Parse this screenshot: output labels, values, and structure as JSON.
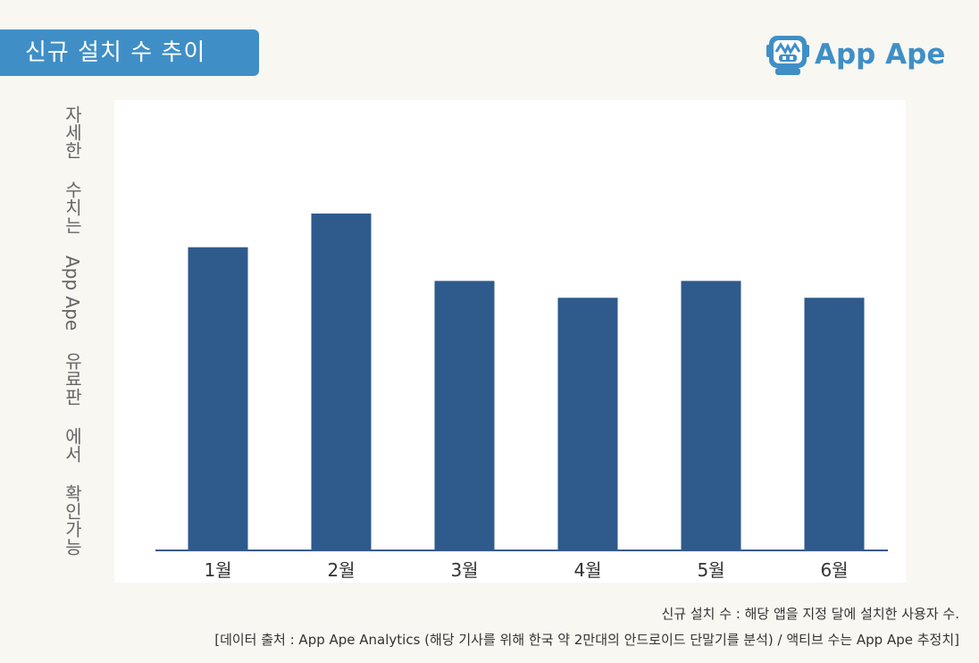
{
  "title": "신규 설치 수 추이",
  "brand": {
    "name": "App Ape",
    "logo_icon": "app-ape-robot-icon",
    "color": "#3f8fc6"
  },
  "y_label": {
    "text": "자세한 수치는 App Ape 유료판 에서 확인가능",
    "part1": "자세한 수치는 ",
    "part2": "App Ape",
    "part3": " 유료판 에서 확인가능"
  },
  "chart_data": {
    "type": "bar",
    "categories": [
      "1월",
      "2월",
      "3월",
      "4월",
      "5월",
      "6월"
    ],
    "values": [
      90,
      100,
      80,
      75,
      80,
      75
    ],
    "ylim": [
      0,
      100
    ],
    "y_ticks_visible": false,
    "grid": false,
    "bar_color": "#2e5a8c",
    "axis_color": "#3a5a8a"
  },
  "footnote": {
    "line1": "신규 설치 수 : 해당 앱을 지정 달에 설치한 사용자 수.",
    "line2": "[데이터 출처 : App Ape Analytics (해당 기사를 위해 한국 약 2만대의 안드로이드 단말기를 분석) / 액티브 수는 App Ape 추정치]"
  }
}
